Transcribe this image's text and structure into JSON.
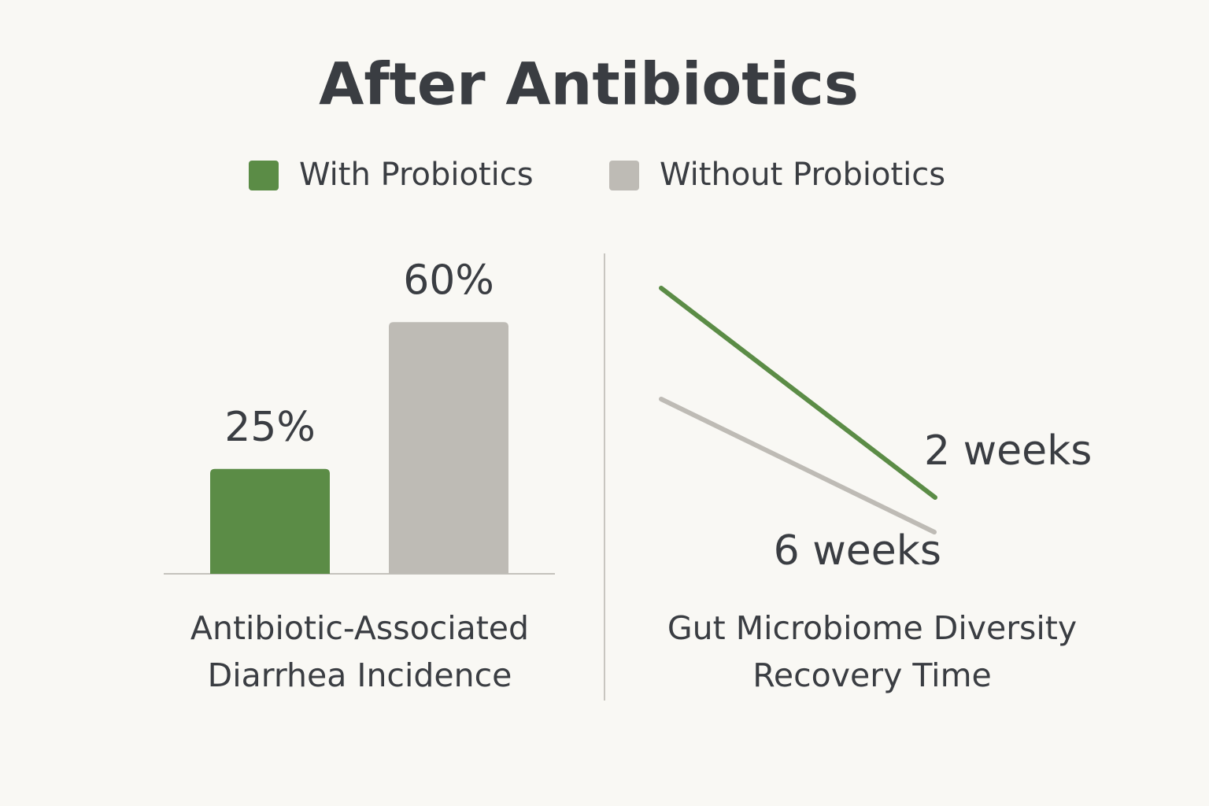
{
  "title": "After Antibiotics",
  "chart_data": [
    {
      "type": "bar",
      "title": "Antibiotic-Associated Diarrhea Incidence",
      "series": [
        {
          "name": "With Probiotics",
          "color": "#5b8c46",
          "values": [
            25
          ],
          "value_labels": [
            "25%"
          ]
        },
        {
          "name": "Without Probiotics",
          "color": "#bebbb5",
          "values": [
            60
          ],
          "value_labels": [
            "60%"
          ]
        }
      ],
      "ylim": [
        0,
        70
      ]
    },
    {
      "type": "line",
      "title": "Gut Microbiome Diversity Recovery Time",
      "series": [
        {
          "color": "#5b8c46",
          "values": [
            2
          ],
          "value_labels": [
            "2 weeks"
          ]
        },
        {
          "color": "#bebbb5",
          "values": [
            6
          ],
          "value_labels": [
            "6 weeks"
          ]
        }
      ]
    }
  ]
}
